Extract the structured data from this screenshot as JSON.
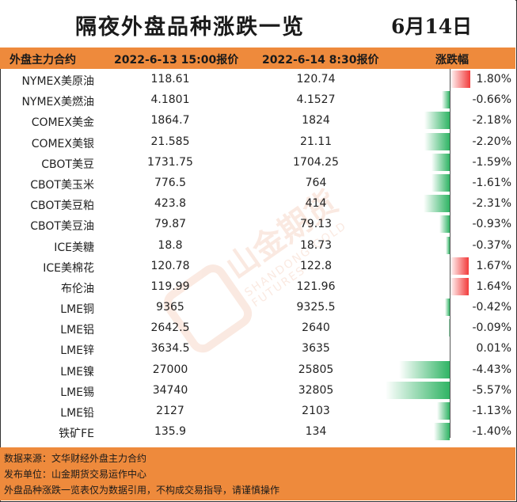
{
  "title": "隔夜外盘品种涨跌一览",
  "date": "6月14日",
  "header": {
    "col_name": "外盘主力合约",
    "col_v1": "2022-6-13 15:00报价",
    "col_v2": "2022-6-14 8:30报价",
    "col_change": "涨跌幅"
  },
  "rows": [
    {
      "name": "NYMEX美原油",
      "v1": "118.61",
      "v2": "120.74",
      "pct": "1.80%",
      "change": 1.8
    },
    {
      "name": "NYMEX美燃油",
      "v1": "4.1801",
      "v2": "4.1527",
      "pct": "-0.66%",
      "change": -0.66
    },
    {
      "name": "COMEX美金",
      "v1": "1864.7",
      "v2": "1824",
      "pct": "-2.18%",
      "change": -2.18
    },
    {
      "name": "COMEX美银",
      "v1": "21.585",
      "v2": "21.11",
      "pct": "-2.20%",
      "change": -2.2
    },
    {
      "name": "CBOT美豆",
      "v1": "1731.75",
      "v2": "1704.25",
      "pct": "-1.59%",
      "change": -1.59
    },
    {
      "name": "CBOT美玉米",
      "v1": "776.5",
      "v2": "764",
      "pct": "-1.61%",
      "change": -1.61
    },
    {
      "name": "CBOT美豆粕",
      "v1": "423.8",
      "v2": "414",
      "pct": "-2.31%",
      "change": -2.31
    },
    {
      "name": "CBOT美豆油",
      "v1": "79.87",
      "v2": "79.13",
      "pct": "-0.93%",
      "change": -0.93
    },
    {
      "name": "ICE美糖",
      "v1": "18.8",
      "v2": "18.73",
      "pct": "-0.37%",
      "change": -0.37
    },
    {
      "name": "ICE美棉花",
      "v1": "120.78",
      "v2": "122.8",
      "pct": "1.67%",
      "change": 1.67
    },
    {
      "name": "布伦油",
      "v1": "119.99",
      "v2": "121.96",
      "pct": "1.64%",
      "change": 1.64
    },
    {
      "name": "LME铜",
      "v1": "9365",
      "v2": "9325.5",
      "pct": "-0.42%",
      "change": -0.42
    },
    {
      "name": "LME铝",
      "v1": "2642.5",
      "v2": "2640",
      "pct": "-0.09%",
      "change": -0.09
    },
    {
      "name": "LME锌",
      "v1": "3634.5",
      "v2": "3635",
      "pct": "0.01%",
      "change": 0.01
    },
    {
      "name": "LME镍",
      "v1": "27000",
      "v2": "25805",
      "pct": "-4.43%",
      "change": -4.43
    },
    {
      "name": "LME锡",
      "v1": "34740",
      "v2": "32805",
      "pct": "-5.57%",
      "change": -5.57
    },
    {
      "name": "LME铅",
      "v1": "2127",
      "v2": "2103",
      "pct": "-1.13%",
      "change": -1.13
    },
    {
      "name": "铁矿FE",
      "v1": "135.9",
      "v2": "134",
      "pct": "-1.40%",
      "change": -1.4
    }
  ],
  "colors": {
    "header_bg": "#ee8a3c",
    "positive": "#f23b3b",
    "negative": "#2fb464"
  },
  "footer": {
    "line1": "数据来源：文华财经外盘主力合约",
    "line2": "发布单位：山金期货交易运作中心",
    "line3": "外盘品种涨跌一览表仅为数据引用，不构成交易指导，请谨慎操作"
  },
  "watermark": {
    "text": "山金期货",
    "sub": "SHANDONG GOLD FUTURES",
    "logo_text": "SD-GOLD"
  }
}
